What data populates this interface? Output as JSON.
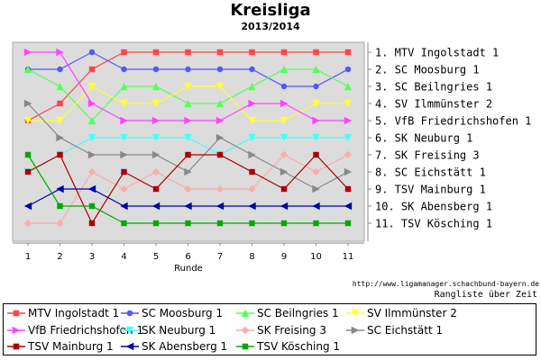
{
  "chart_data": {
    "type": "line",
    "title": "Kreisliga",
    "subtitle": "2013/2014",
    "xlabel": "Runde",
    "ylabel": "",
    "x": [
      1,
      2,
      3,
      4,
      5,
      6,
      7,
      8,
      9,
      10,
      11
    ],
    "ylim": [
      1,
      11
    ],
    "y_inverted": true,
    "grid": false,
    "legend_position": "bottom",
    "rank_labels": [
      "1. MTV Ingolstadt 1",
      "2. SC Moosburg 1",
      "3. SC Beilngries 1",
      "4. SV Ilmmünster 2",
      "5. VfB Friedrichshofen 1",
      "6. SK Neuburg 1",
      "7. SK Freising 3",
      "8. SC Eichstätt 1",
      "9. TSV Mainburg 1",
      "10. SK Abensberg 1",
      "11. TSV Kösching 1"
    ],
    "series": [
      {
        "name": "MTV Ingolstadt 1",
        "color": "#ff4444",
        "marker": "square",
        "values": [
          5,
          4,
          2,
          1,
          1,
          1,
          1,
          1,
          1,
          1,
          1
        ]
      },
      {
        "name": "SC Moosburg 1",
        "color": "#5555ff",
        "marker": "circle",
        "values": [
          2,
          2,
          1,
          2,
          2,
          2,
          2,
          2,
          3,
          3,
          2
        ]
      },
      {
        "name": "SC Beilngries 1",
        "color": "#55ff55",
        "marker": "triangle-up",
        "values": [
          2,
          3,
          5,
          3,
          3,
          4,
          4,
          3,
          2,
          2,
          3
        ]
      },
      {
        "name": "SV Ilmmünster 2",
        "color": "#ffff33",
        "marker": "triangle-down",
        "values": [
          5,
          5,
          3,
          4,
          4,
          3,
          3,
          5,
          5,
          4,
          4
        ]
      },
      {
        "name": "VfB Friedrichshofen 1",
        "color": "#ff44ff",
        "marker": "triangle-right",
        "values": [
          1,
          1,
          4,
          5,
          5,
          5,
          5,
          4,
          4,
          5,
          5
        ]
      },
      {
        "name": "SK Neuburg 1",
        "color": "#44ffff",
        "marker": "triangle-down",
        "values": [
          8,
          7,
          6,
          6,
          6,
          6,
          7,
          6,
          6,
          6,
          6
        ]
      },
      {
        "name": "SK Freising 3",
        "color": "#ffaaaa",
        "marker": "diamond",
        "values": [
          11,
          11,
          8,
          9,
          8,
          9,
          9,
          9,
          7,
          8,
          7
        ]
      },
      {
        "name": "SC Eichstätt 1",
        "color": "#888888",
        "marker": "triangle-right",
        "values": [
          4,
          6,
          7,
          7,
          7,
          8,
          6,
          7,
          8,
          9,
          8
        ]
      },
      {
        "name": "TSV Mainburg 1",
        "color": "#aa0000",
        "marker": "square",
        "values": [
          8,
          7,
          11,
          8,
          9,
          7,
          7,
          8,
          9,
          7,
          9
        ]
      },
      {
        "name": "SK Abensberg 1",
        "color": "#0000aa",
        "marker": "triangle-left",
        "values": [
          10,
          9,
          9,
          10,
          10,
          10,
          10,
          10,
          10,
          10,
          10
        ]
      },
      {
        "name": "TSV Kösching 1",
        "color": "#00aa00",
        "marker": "square",
        "values": [
          7,
          10,
          10,
          11,
          11,
          11,
          11,
          11,
          11,
          11,
          11
        ]
      }
    ]
  },
  "footer": {
    "source_url": "http://www.ligamanager.schachbund-bayern.de",
    "caption": "Rangliste über Zeit"
  }
}
